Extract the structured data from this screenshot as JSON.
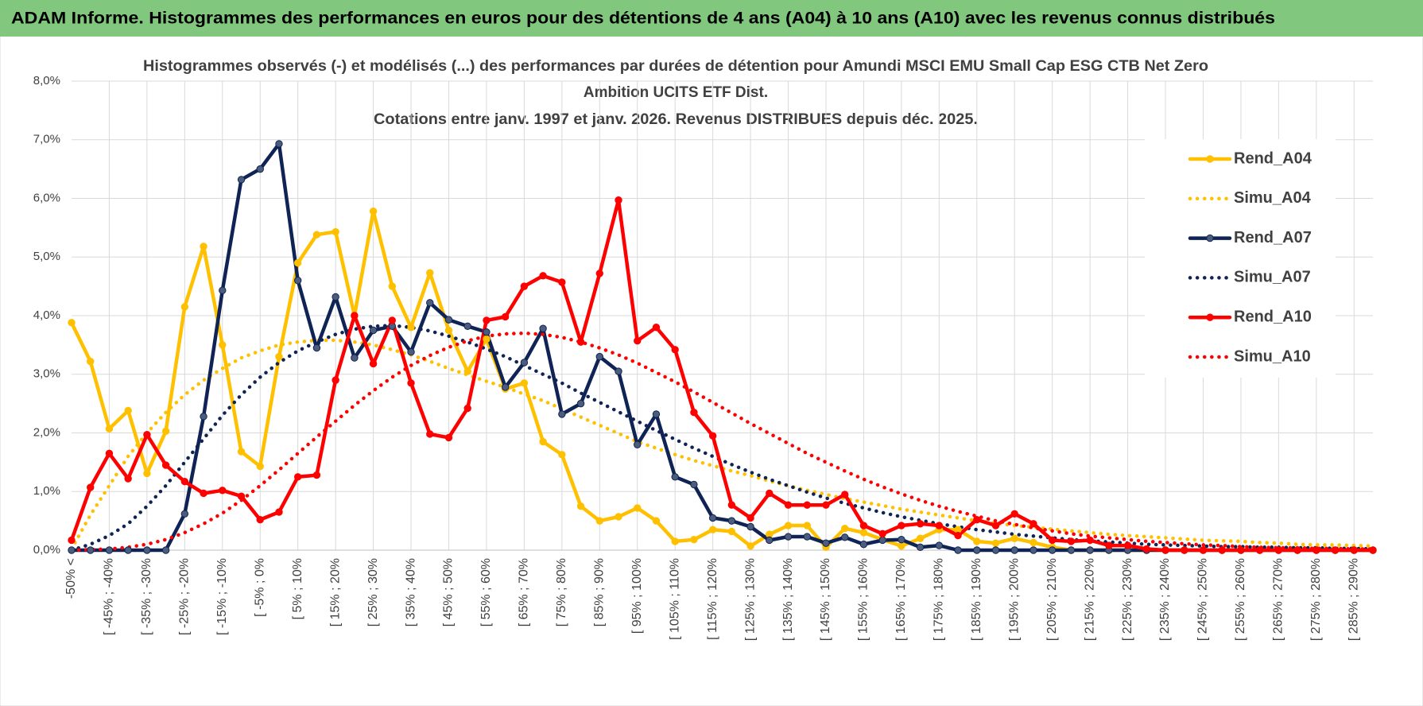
{
  "header": {
    "title": "ADAM Informe. Histogrammes des performances en euros pour des détentions de 4 ans (A04) à 10 ans (A10) avec les revenus connus distribués"
  },
  "chart_data": {
    "type": "line",
    "title": [
      "Histogrammes observés (-) et modélisés (...) des performances par durées de détention pour Amundi MSCI EMU Small Cap ESG CTB Net Zero",
      "Ambition UCITS ETF Dist.",
      "Cotations entre janv. 1997 et janv. 2026. Revenus DISTRIBUES depuis déc. 2025."
    ],
    "categories": [
      "-50% <",
      null,
      "[ -45% ; -40%",
      null,
      "[ -35% ; -30%",
      null,
      "[ -25% ; -20%",
      null,
      "[ -15% ; -10%",
      null,
      "[ -5% ; 0%",
      null,
      "[ 5% ; 10%",
      null,
      "[ 15% ; 20%",
      null,
      "[ 25% ; 30%",
      null,
      "[ 35% ; 40%",
      null,
      "[ 45% ; 50%",
      null,
      "[ 55% ; 60%",
      null,
      "[ 65% ; 70%",
      null,
      "[ 75% ; 80%",
      null,
      "[ 85% ; 90%",
      null,
      "[ 95% ; 100%",
      null,
      "[ 105% ; 110%",
      null,
      "[ 115% ; 120%",
      null,
      "[ 125% ; 130%",
      null,
      "[ 135% ; 140%",
      null,
      "[ 145% ; 150%",
      null,
      "[ 155% ; 160%",
      null,
      "[ 165% ; 170%",
      null,
      "[ 175% ; 180%",
      null,
      "[ 185% ; 190%",
      null,
      "[ 195% ; 200%",
      null,
      "[ 205% ; 210%",
      null,
      "[ 215% ; 220%",
      null,
      "[ 225% ; 230%",
      null,
      "[ 235% ; 240%",
      null,
      "[ 245% ; 250%",
      null,
      "[ 255% ; 260%",
      null,
      "[ 265% ; 270%",
      null,
      "[ 275% ; 280%",
      null,
      "[ 285% ; 290%",
      null
    ],
    "ylim": [
      0,
      8
    ],
    "yticks": [
      {
        "value": 0,
        "label": "0,0%"
      },
      {
        "value": 1,
        "label": "1,0%"
      },
      {
        "value": 2,
        "label": "2,0%"
      },
      {
        "value": 3,
        "label": "3,0%"
      },
      {
        "value": 4,
        "label": "4,0%"
      },
      {
        "value": 5,
        "label": "5,0%"
      },
      {
        "value": 6,
        "label": "6,0%"
      },
      {
        "value": 7,
        "label": "7,0%"
      },
      {
        "value": 8,
        "label": "8,0%"
      }
    ],
    "grid": true,
    "legend": "right",
    "series": [
      {
        "name": "Rend_A04",
        "color": "#ffc000",
        "style": "solid",
        "markers": true,
        "values": [
          3.88,
          3.22,
          2.07,
          2.38,
          1.31,
          2.03,
          4.15,
          5.18,
          3.5,
          1.68,
          1.43,
          3.3,
          4.9,
          5.38,
          5.43,
          4.0,
          5.78,
          4.5,
          3.8,
          4.73,
          3.75,
          3.05,
          3.6,
          2.75,
          2.85,
          1.85,
          1.63,
          0.75,
          0.5,
          0.57,
          0.72,
          0.5,
          0.15,
          0.18,
          0.35,
          0.32,
          0.07,
          0.27,
          0.42,
          0.42,
          0.05,
          0.37,
          0.3,
          0.18,
          0.07,
          0.2,
          0.35,
          0.35,
          0.15,
          0.12,
          0.2,
          0.13,
          0.05,
          0,
          0,
          0,
          0,
          0,
          0,
          0,
          0,
          0,
          0,
          0,
          0,
          0,
          0,
          0,
          0,
          0
        ]
      },
      {
        "name": "Simu_A04",
        "color": "#ffc000",
        "style": "dotted",
        "markers": false,
        "values": [
          0.02,
          0.6,
          1.1,
          1.6,
          2.0,
          2.35,
          2.65,
          2.9,
          3.1,
          3.28,
          3.4,
          3.5,
          3.55,
          3.58,
          3.58,
          3.55,
          3.5,
          3.42,
          3.33,
          3.22,
          3.1,
          2.99,
          2.88,
          2.78,
          2.66,
          2.55,
          2.41,
          2.27,
          2.13,
          1.99,
          1.85,
          1.74,
          1.63,
          1.53,
          1.44,
          1.35,
          1.27,
          1.18,
          1.1,
          1.02,
          0.95,
          0.88,
          0.82,
          0.76,
          0.7,
          0.65,
          0.6,
          0.55,
          0.5,
          0.46,
          0.42,
          0.39,
          0.36,
          0.33,
          0.3,
          0.27,
          0.25,
          0.23,
          0.21,
          0.19,
          0.17,
          0.16,
          0.15,
          0.13,
          0.12,
          0.1,
          0.09,
          0.09,
          0.08,
          0.07
        ]
      },
      {
        "name": "Rend_A07",
        "color": "#0f2454",
        "style": "solid",
        "markers": true,
        "values": [
          0,
          0,
          0,
          0,
          0,
          0,
          0.62,
          2.28,
          4.43,
          6.32,
          6.5,
          6.93,
          4.6,
          3.45,
          4.32,
          3.28,
          3.75,
          3.82,
          3.38,
          4.22,
          3.93,
          3.82,
          3.72,
          2.78,
          3.2,
          3.78,
          2.32,
          2.5,
          3.3,
          3.05,
          1.8,
          2.32,
          1.25,
          1.12,
          0.55,
          0.5,
          0.4,
          0.17,
          0.23,
          0.23,
          0.12,
          0.22,
          0.1,
          0.17,
          0.18,
          0.05,
          0.08,
          0,
          0,
          0,
          0,
          0,
          0,
          0,
          0,
          0,
          0,
          0,
          0,
          0,
          0,
          0,
          0,
          0,
          0,
          0,
          0,
          0,
          0,
          0
        ]
      },
      {
        "name": "Simu_A07",
        "color": "#0f2454",
        "style": "dotted",
        "markers": false,
        "values": [
          0,
          0.1,
          0.25,
          0.45,
          0.75,
          1.1,
          1.5,
          1.9,
          2.3,
          2.65,
          2.95,
          3.2,
          3.4,
          3.55,
          3.68,
          3.77,
          3.82,
          3.83,
          3.8,
          3.74,
          3.65,
          3.55,
          3.43,
          3.3,
          3.15,
          3.0,
          2.85,
          2.68,
          2.52,
          2.36,
          2.2,
          2.04,
          1.89,
          1.74,
          1.6,
          1.46,
          1.33,
          1.21,
          1.1,
          0.99,
          0.89,
          0.8,
          0.72,
          0.64,
          0.57,
          0.51,
          0.45,
          0.4,
          0.35,
          0.31,
          0.27,
          0.24,
          0.21,
          0.18,
          0.16,
          0.14,
          0.12,
          0.1,
          0.09,
          0.08,
          0.07,
          0.06,
          0.06,
          0.05,
          0.05,
          0.04,
          0.04,
          0.03,
          0.03,
          0.02
        ]
      },
      {
        "name": "Rend_A10",
        "color": "#ff0000",
        "style": "solid",
        "markers": true,
        "values": [
          0.17,
          1.07,
          1.65,
          1.22,
          1.97,
          1.45,
          1.17,
          0.97,
          1.02,
          0.92,
          0.52,
          0.65,
          1.25,
          1.28,
          2.9,
          4.0,
          3.18,
          3.92,
          2.85,
          1.98,
          1.92,
          2.42,
          3.92,
          3.98,
          4.5,
          4.68,
          4.57,
          3.55,
          4.72,
          5.97,
          3.57,
          3.8,
          3.42,
          2.35,
          1.95,
          0.77,
          0.55,
          0.97,
          0.77,
          0.77,
          0.77,
          0.95,
          0.42,
          0.28,
          0.42,
          0.45,
          0.42,
          0.25,
          0.52,
          0.42,
          0.62,
          0.45,
          0.17,
          0.15,
          0.17,
          0.08,
          0.08,
          0.02,
          0,
          0,
          0,
          0,
          0,
          0,
          0,
          0,
          0,
          0,
          0,
          0
        ]
      },
      {
        "name": "Simu_A10",
        "color": "#ff0000",
        "style": "dotted",
        "markers": false,
        "values": [
          0,
          0.01,
          0.02,
          0.05,
          0.1,
          0.18,
          0.3,
          0.45,
          0.63,
          0.85,
          1.1,
          1.37,
          1.65,
          1.93,
          2.2,
          2.47,
          2.72,
          2.95,
          3.15,
          3.32,
          3.46,
          3.57,
          3.65,
          3.69,
          3.7,
          3.68,
          3.63,
          3.55,
          3.45,
          3.33,
          3.19,
          3.03,
          2.87,
          2.7,
          2.52,
          2.34,
          2.16,
          1.99,
          1.82,
          1.65,
          1.5,
          1.35,
          1.21,
          1.08,
          0.96,
          0.85,
          0.75,
          0.66,
          0.58,
          0.5,
          0.44,
          0.38,
          0.33,
          0.28,
          0.24,
          0.21,
          0.18,
          0.15,
          0.13,
          0.11,
          0.09,
          0.08,
          0.06,
          0.05,
          0.04,
          0.04,
          0.03,
          0.03,
          0.02,
          0.02
        ]
      }
    ]
  }
}
